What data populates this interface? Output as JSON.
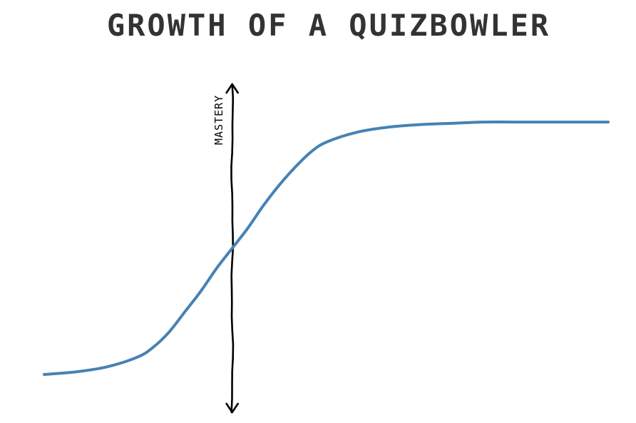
{
  "chart_data": {
    "type": "line",
    "title": "GROWTH OF A QUIZBOWLER",
    "xlabel": "",
    "ylabel": "MASTERY",
    "xlim": [
      -6,
      12
    ],
    "ylim": [
      -0.15,
      1.15
    ],
    "grid": false,
    "legend": "none",
    "series": [
      {
        "color": "#4682b4",
        "x": [
          -6,
          -5,
          -4,
          -3,
          -2.5,
          -2,
          -1.5,
          -1,
          -0.5,
          0,
          0.5,
          1,
          1.5,
          2,
          2.5,
          3,
          4,
          5,
          6,
          7,
          8,
          9,
          10,
          11,
          12
        ],
        "values": [
          0.0,
          0.01,
          0.03,
          0.07,
          0.11,
          0.17,
          0.25,
          0.33,
          0.42,
          0.5,
          0.58,
          0.67,
          0.75,
          0.82,
          0.88,
          0.92,
          0.96,
          0.98,
          0.99,
          0.995,
          1.0,
          1.0,
          1.0,
          1.0,
          1.0
        ]
      }
    ],
    "axis_color": "#000000",
    "title_color": "#333333"
  }
}
